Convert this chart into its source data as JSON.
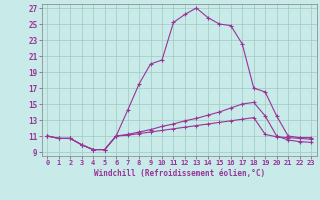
{
  "title": "",
  "xlabel": "Windchill (Refroidissement éolien,°C)",
  "background_color": "#c8eae8",
  "grid_color": "#a0c8c0",
  "line_color": "#993399",
  "xlim": [
    -0.5,
    23.5
  ],
  "ylim": [
    8.5,
    27.5
  ],
  "xticks": [
    0,
    1,
    2,
    3,
    4,
    5,
    6,
    7,
    8,
    9,
    10,
    11,
    12,
    13,
    14,
    15,
    16,
    17,
    18,
    19,
    20,
    21,
    22,
    23
  ],
  "yticks": [
    9,
    11,
    13,
    15,
    17,
    19,
    21,
    23,
    25,
    27
  ],
  "curve1_x": [
    0,
    1,
    2,
    3,
    4,
    5,
    6,
    7,
    8,
    9,
    10,
    11,
    12,
    13,
    14,
    15,
    16,
    17,
    18,
    19,
    20,
    21,
    22,
    23
  ],
  "curve1_y": [
    11.0,
    10.7,
    10.7,
    9.9,
    9.3,
    9.3,
    11.0,
    14.2,
    17.5,
    20.0,
    20.5,
    25.2,
    26.2,
    27.0,
    25.8,
    25.0,
    24.8,
    22.5,
    17.0,
    16.5,
    13.5,
    11.0,
    10.8,
    10.8
  ],
  "curve2_x": [
    0,
    1,
    2,
    3,
    4,
    5,
    6,
    7,
    8,
    9,
    10,
    11,
    12,
    13,
    14,
    15,
    16,
    17,
    18,
    19,
    20,
    21,
    22,
    23
  ],
  "curve2_y": [
    11.0,
    10.7,
    10.7,
    9.9,
    9.3,
    9.3,
    11.0,
    11.2,
    11.5,
    11.8,
    12.2,
    12.5,
    12.9,
    13.2,
    13.6,
    14.0,
    14.5,
    15.0,
    15.2,
    13.5,
    11.0,
    10.5,
    10.3,
    10.2
  ],
  "curve3_x": [
    0,
    1,
    2,
    3,
    4,
    5,
    6,
    7,
    8,
    9,
    10,
    11,
    12,
    13,
    14,
    15,
    16,
    17,
    18,
    19,
    20,
    21,
    22,
    23
  ],
  "curve3_y": [
    11.0,
    10.7,
    10.7,
    9.9,
    9.3,
    9.3,
    11.0,
    11.1,
    11.3,
    11.5,
    11.7,
    11.9,
    12.1,
    12.3,
    12.5,
    12.7,
    12.9,
    13.1,
    13.3,
    11.2,
    10.9,
    10.8,
    10.7,
    10.6
  ]
}
